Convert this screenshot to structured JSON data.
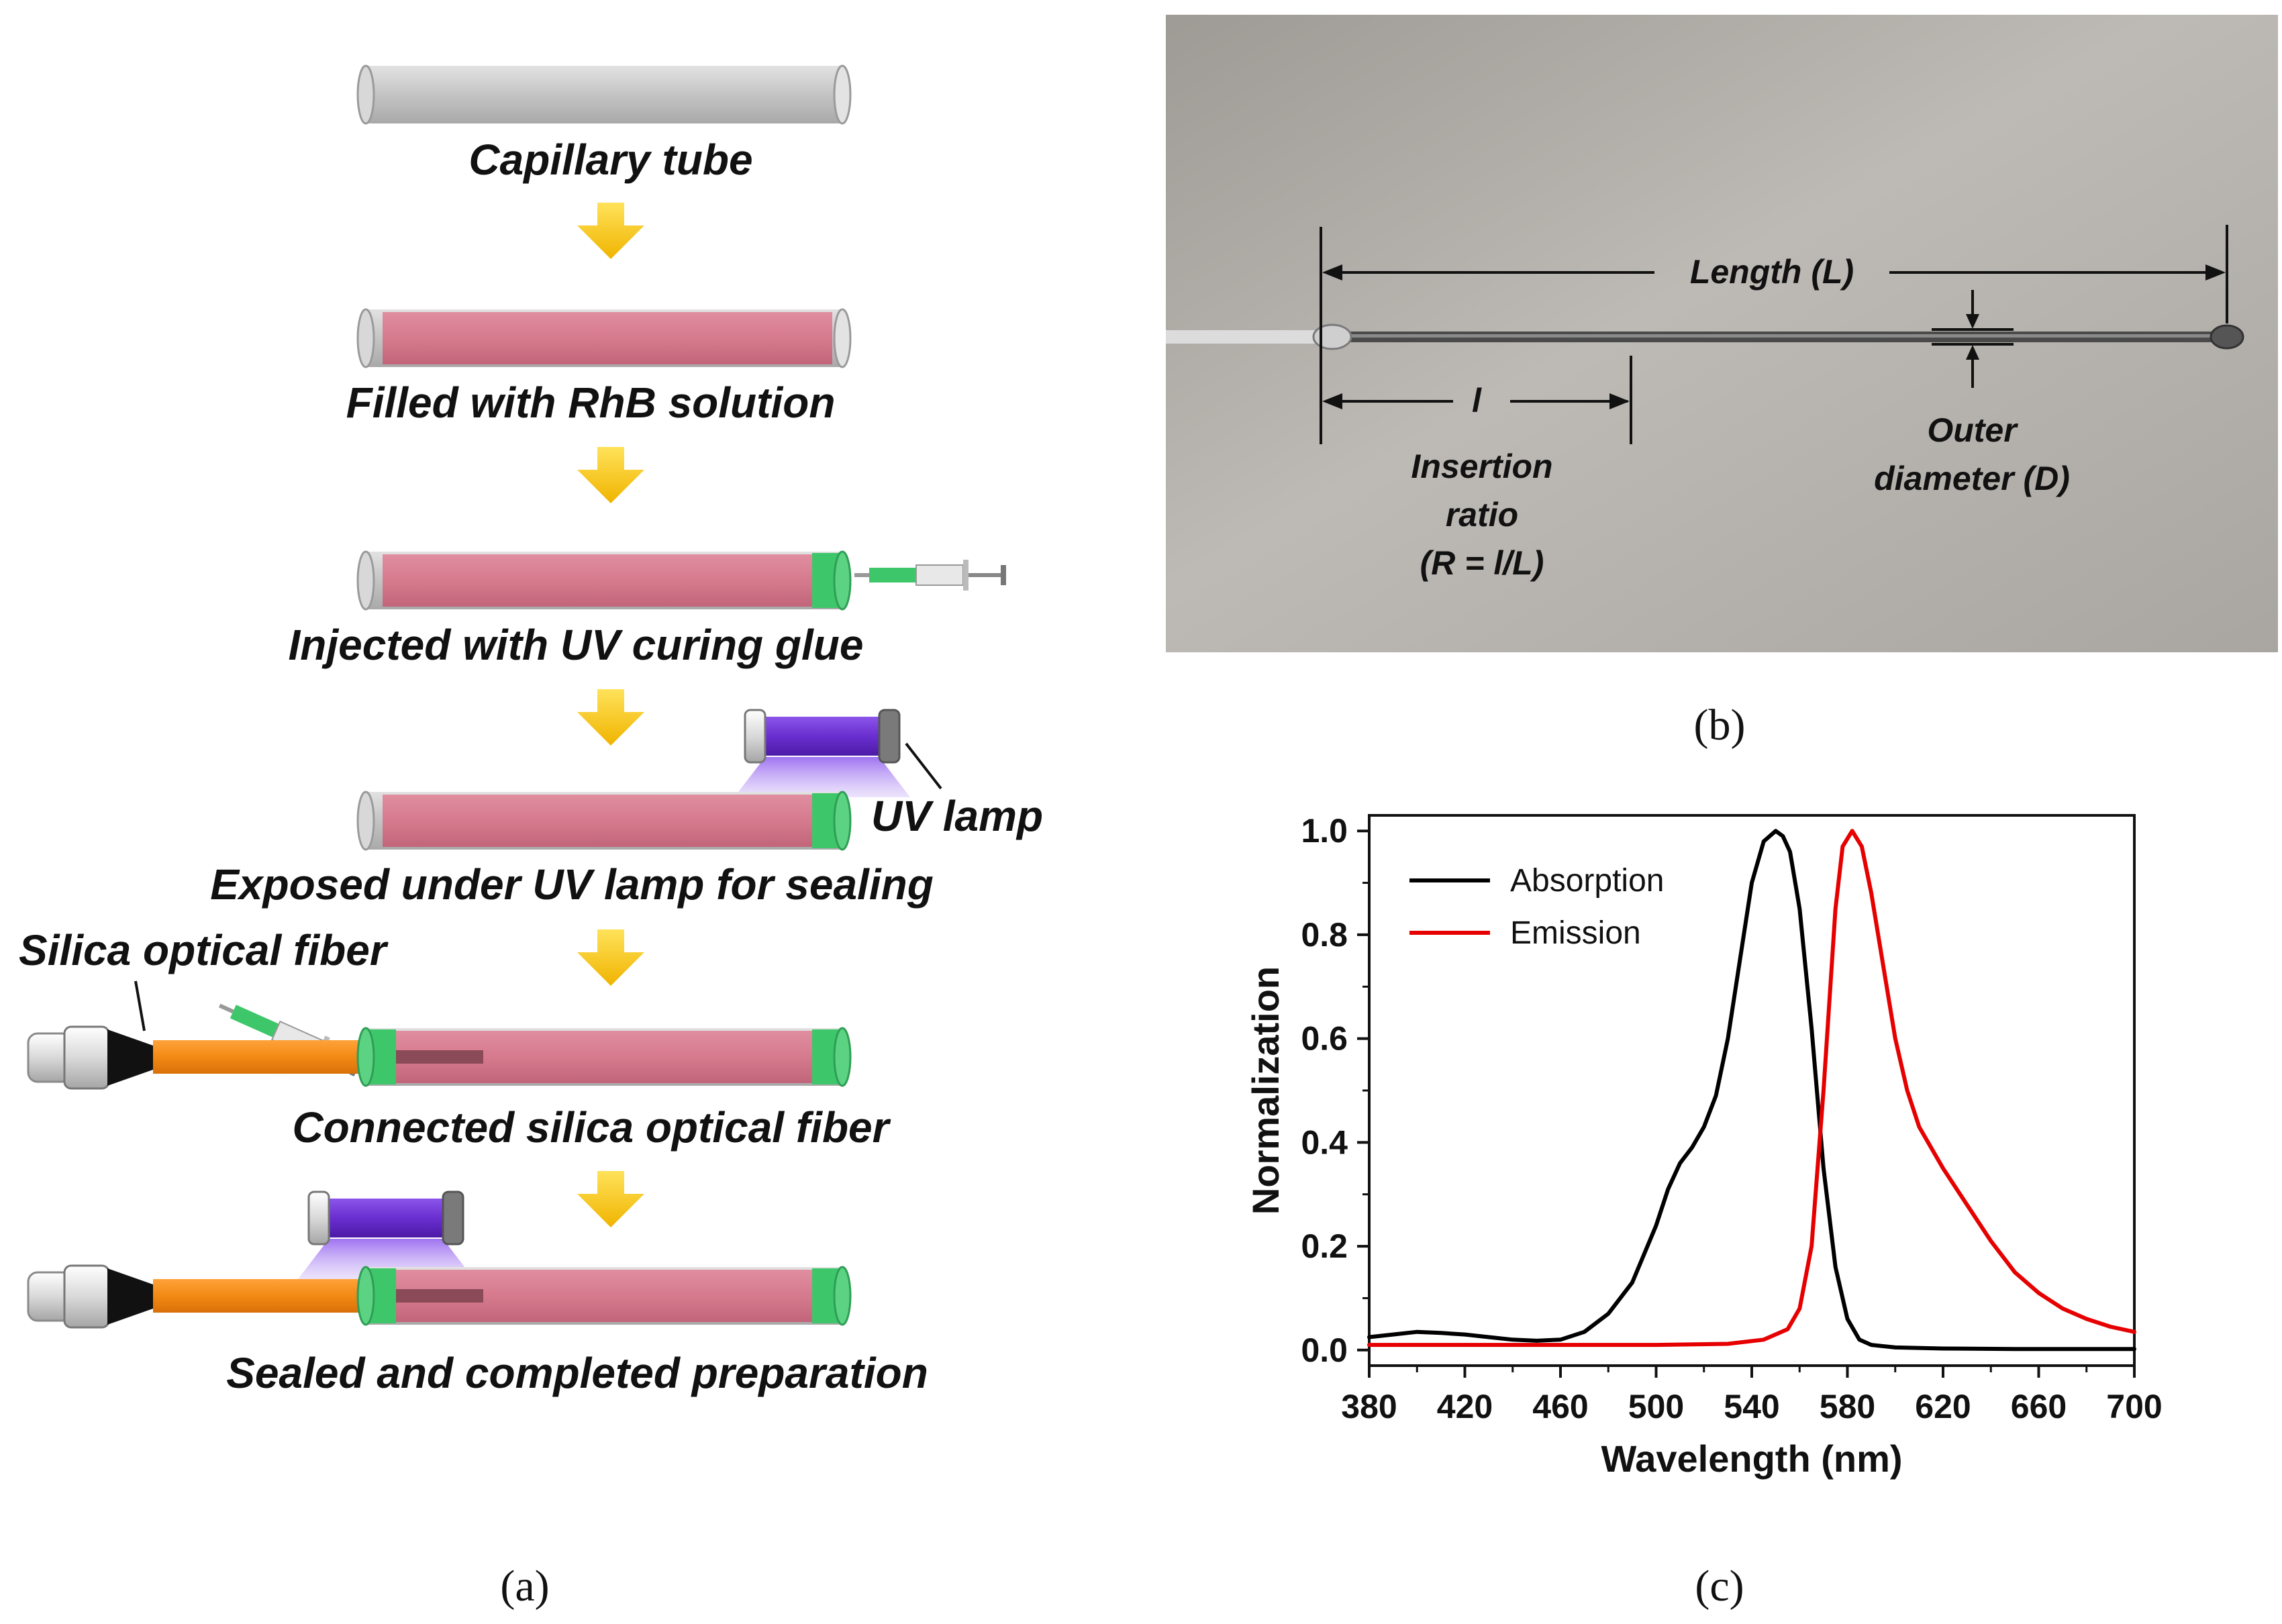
{
  "panel_a": {
    "letter": "(a)",
    "steps": [
      {
        "label": "Capillary tube"
      },
      {
        "label": "Filled with RhB solution"
      },
      {
        "label": "Injected with UV curing glue"
      },
      {
        "label": "Exposed under UV lamp for sealing"
      },
      {
        "label": "Connected silica optical fiber"
      },
      {
        "label": "Sealed and completed preparation"
      }
    ],
    "uv_lamp_label": "UV lamp",
    "fiber_label": "Silica optical fiber",
    "colors": {
      "tube": "#c9c9c9",
      "rhb": "#d67a8e",
      "glue": "#3ec76a",
      "arrow": "#f5c400",
      "lamp": "#6a2fd0",
      "fiber": "#f28a14"
    }
  },
  "panel_b": {
    "letter": "(b)",
    "length_label": "Length (L)",
    "insertion_symbol": "l",
    "insertion_label": [
      "Insertion",
      "ratio",
      "(R = l/L)"
    ],
    "diameter_label": [
      "Outer",
      "diameter (D)"
    ]
  },
  "panel_c": {
    "letter": "(c)"
  },
  "chart_data": {
    "type": "line",
    "title": "",
    "xlabel": "Wavelength (nm)",
    "ylabel": "Normalization",
    "xlim": [
      380,
      700
    ],
    "ylim": [
      -0.03,
      1.03
    ],
    "xticks": [
      380,
      420,
      460,
      500,
      540,
      580,
      620,
      660,
      700
    ],
    "yticks": [
      "0.0",
      "0.2",
      "0.4",
      "0.6",
      "0.8",
      "1.0"
    ],
    "legend_position": "top-left",
    "series": [
      {
        "name": "Absorption",
        "color": "#000000",
        "x": [
          380,
          390,
          400,
          410,
          420,
          430,
          440,
          450,
          460,
          470,
          480,
          490,
          500,
          505,
          510,
          515,
          520,
          525,
          530,
          535,
          540,
          545,
          550,
          553,
          556,
          560,
          565,
          570,
          575,
          580,
          585,
          590,
          600,
          620,
          650,
          700
        ],
        "y": [
          0.025,
          0.03,
          0.035,
          0.033,
          0.03,
          0.025,
          0.02,
          0.018,
          0.02,
          0.035,
          0.07,
          0.13,
          0.24,
          0.31,
          0.36,
          0.39,
          0.43,
          0.49,
          0.6,
          0.75,
          0.9,
          0.98,
          1.0,
          0.99,
          0.96,
          0.85,
          0.62,
          0.35,
          0.16,
          0.06,
          0.02,
          0.01,
          0.005,
          0.003,
          0.002,
          0.002
        ]
      },
      {
        "name": "Emission",
        "color": "#e60000",
        "x": [
          380,
          420,
          460,
          500,
          530,
          545,
          555,
          560,
          565,
          570,
          575,
          578,
          582,
          586,
          590,
          595,
          600,
          605,
          610,
          620,
          630,
          640,
          650,
          660,
          670,
          680,
          690,
          700
        ],
        "y": [
          0.01,
          0.01,
          0.01,
          0.01,
          0.012,
          0.02,
          0.04,
          0.08,
          0.2,
          0.5,
          0.85,
          0.97,
          1.0,
          0.97,
          0.88,
          0.74,
          0.6,
          0.5,
          0.43,
          0.35,
          0.28,
          0.21,
          0.15,
          0.11,
          0.08,
          0.06,
          0.045,
          0.035
        ]
      }
    ]
  }
}
